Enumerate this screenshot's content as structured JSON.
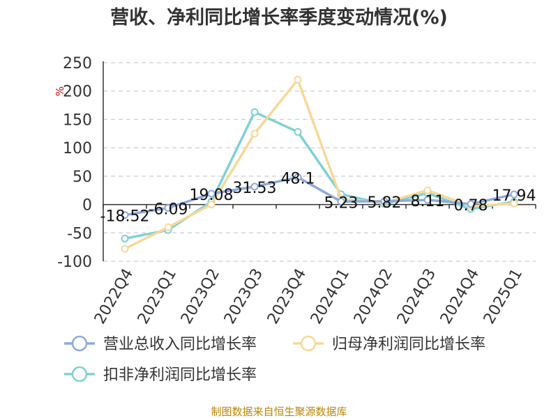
{
  "chart_data": {
    "type": "line",
    "title": "营收、净利同比增长率季度变动情况(%)",
    "unit": "%",
    "categories": [
      "2022Q4",
      "2023Q1",
      "2023Q2",
      "2023Q3",
      "2023Q4",
      "2024Q1",
      "2024Q2",
      "2024Q3",
      "2024Q4",
      "2025Q1"
    ],
    "ylim": [
      -100,
      250
    ],
    "yticks": [
      "250",
      "200",
      "150",
      "100",
      "50",
      "0",
      "-50",
      "-100"
    ],
    "grid": true,
    "legend_position": "bottom",
    "series": [
      {
        "name": "营业总收入同比增长率",
        "color": "#8fa9d9",
        "values": [
          -18.52,
          -6.09,
          19.08,
          31.53,
          48.1,
          5.23,
          5.82,
          8.11,
          0.78,
          17.94
        ],
        "labels": [
          "-18.52",
          "-6.09",
          "19.08",
          "31.53",
          "48.1",
          "5.23",
          "5.82",
          "8.11",
          "0.78",
          "17.94"
        ]
      },
      {
        "name": "归母净利润同比增长率",
        "color": "#f7d898",
        "values": [
          -78,
          -40,
          0,
          125,
          220,
          10,
          3,
          25,
          -3,
          2
        ]
      },
      {
        "name": "扣非净利润同比增长率",
        "color": "#7fd1d4",
        "values": [
          -60,
          -45,
          5,
          163,
          128,
          18,
          1,
          20,
          -8,
          5
        ]
      }
    ]
  },
  "source": "制图数据来自恒生聚源数据库"
}
